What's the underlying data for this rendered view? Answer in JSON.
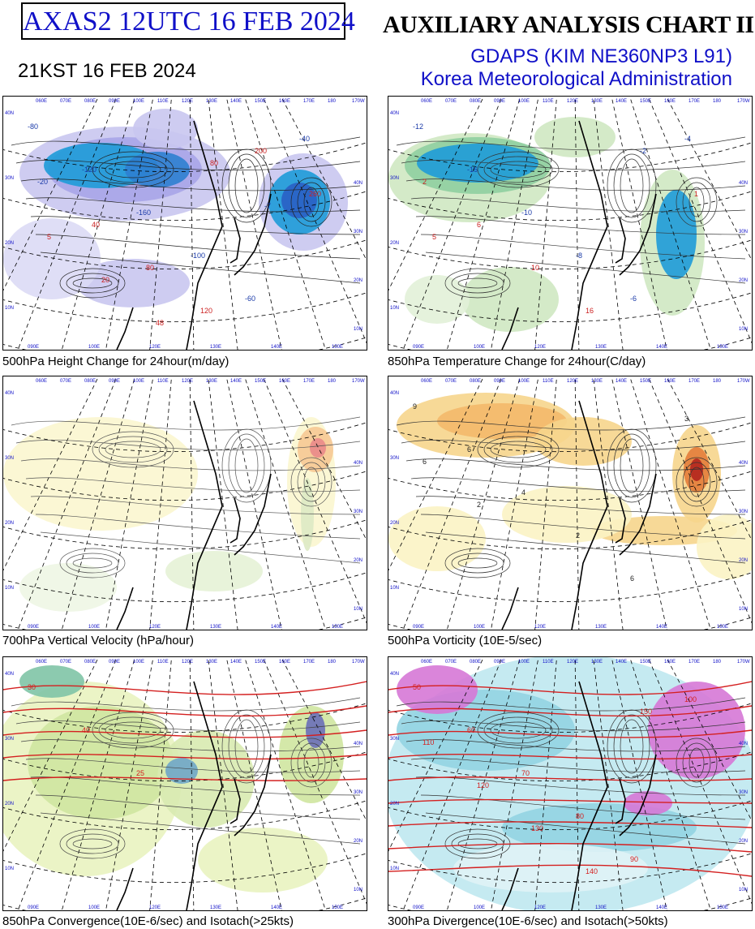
{
  "header": {
    "run_id": "AXAS2  12UTC 16 FEB 2024",
    "chart_title": "AUXILIARY ANALYSIS CHART II",
    "model": "GDAPS (KIM NE360NP3 L91)",
    "agency": "Korea Meteorological Administration",
    "local_time": "21KST 16 FEB 2024"
  },
  "map_labels": {
    "lon_top": [
      "060E",
      "070E",
      "080E",
      "090E",
      "100E",
      "110E",
      "120E",
      "130E",
      "140E",
      "150E",
      "160E",
      "170E",
      "180",
      "170W"
    ],
    "lon_bottom": [
      "090E",
      "100E",
      "120E",
      "130E",
      "140E",
      "150E"
    ],
    "lat_left": [
      "40N",
      "30N",
      "20N",
      "10N"
    ],
    "lat_right": [
      "40N",
      "30N",
      "20N",
      "10N"
    ]
  },
  "panels": [
    {
      "caption": "500hPa Height Change for 24hour(m/day)",
      "palette": "height",
      "labels": [
        "-80",
        "-120",
        "-160",
        "-100",
        "-60",
        "-40",
        "-20",
        "40",
        "80",
        "120",
        "200",
        "260",
        "5",
        "20",
        "48",
        "80",
        "-7"
      ]
    },
    {
      "caption": "850hPa Temperature Change for 24hour(C/day)",
      "palette": "temp",
      "labels": [
        "-12",
        "-16",
        "-10",
        "-8",
        "-6",
        "-4",
        "2",
        "6",
        "10",
        "16",
        "-2",
        "1",
        "5"
      ]
    },
    {
      "caption": "700hPa Vertical Velocity (hPa/hour)",
      "palette": "vv",
      "labels": []
    },
    {
      "caption": "500hPa Vorticity (10E-5/sec)",
      "palette": "vort",
      "labels": [
        "9",
        "6",
        "4",
        "2",
        "6",
        "3",
        "6",
        "2"
      ]
    },
    {
      "caption": "850hPa Convergence(10E-6/sec) and Isotach(>25kts)",
      "palette": "conv",
      "labels": [
        "30",
        "40",
        "25"
      ]
    },
    {
      "caption": "300hPa Divergence(10E-6/sec) and Isotach(>50kts)",
      "palette": "div",
      "labels": [
        "50",
        "60",
        "70",
        "80",
        "90",
        "100",
        "110",
        "120",
        "130",
        "140",
        "150"
      ]
    }
  ]
}
